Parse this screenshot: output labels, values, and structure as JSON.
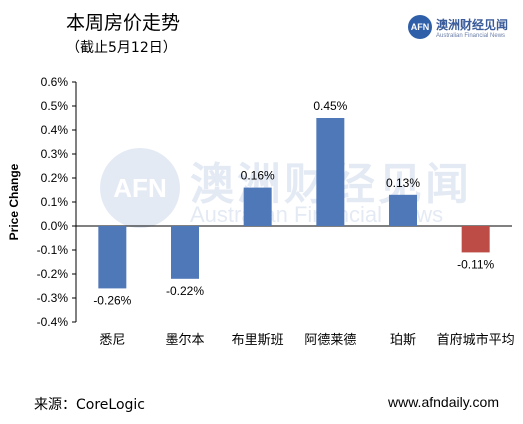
{
  "header": {
    "title": "本周房价走势",
    "subtitle": "（截止5月12日）"
  },
  "logo": {
    "badge": "AFN",
    "name": "澳洲财经见闻",
    "tagline": "Australian Financial News",
    "brand_color": "#2f5fa8"
  },
  "watermark": {
    "badge": "AFN",
    "name": "澳洲财经见闻",
    "tagline": "Australian Financial News"
  },
  "footer": {
    "source": "来源：CoreLogic",
    "site": "www.afndaily.com"
  },
  "chart_data": {
    "type": "bar",
    "title": "",
    "xlabel": "",
    "ylabel": "Price Change",
    "ylim": [
      -0.4,
      0.6
    ],
    "yticks": [
      -0.4,
      -0.3,
      -0.2,
      -0.1,
      0.0,
      0.1,
      0.2,
      0.3,
      0.4,
      0.5,
      0.6
    ],
    "ytick_labels": [
      "-0.4%",
      "-0.3%",
      "-0.2%",
      "-0.1%",
      "0.0%",
      "0.1%",
      "0.2%",
      "0.3%",
      "0.4%",
      "0.5%",
      "0.6%"
    ],
    "categories": [
      "悉尼",
      "墨尔本",
      "布里斯班",
      "阿德莱德",
      "珀斯",
      "首府城市平均"
    ],
    "values": [
      -0.26,
      -0.22,
      0.16,
      0.45,
      0.13,
      -0.11
    ],
    "data_labels": [
      "-0.26%",
      "-0.22%",
      "0.16%",
      "0.45%",
      "0.13%",
      "-0.11%"
    ],
    "bar_colors": [
      "#4f78b8",
      "#4f78b8",
      "#4f78b8",
      "#4f78b8",
      "#4f78b8",
      "#bd4c47"
    ],
    "grid": false
  }
}
